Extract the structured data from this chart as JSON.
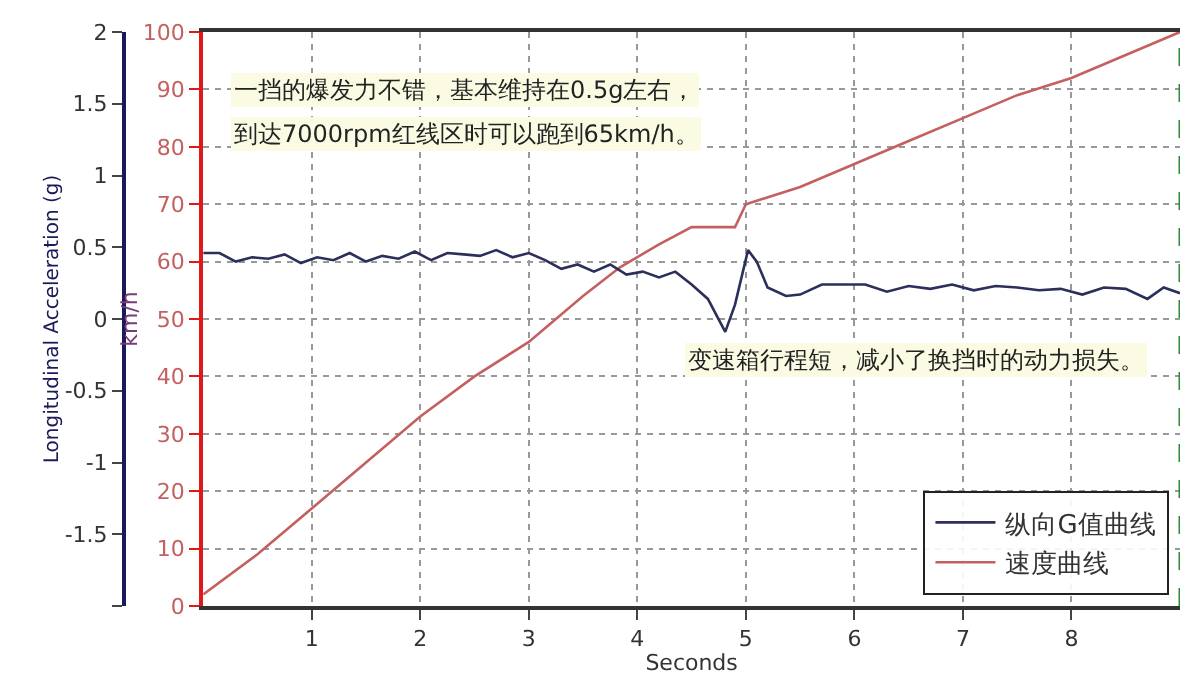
{
  "chart_data": {
    "type": "line",
    "xlabel": "Seconds",
    "ylabel": "km/h",
    "y2label": "Longitudinal Acceleration (g)",
    "xlim": [
      0,
      9
    ],
    "xticks": [
      1,
      2,
      3,
      4,
      5,
      6,
      7,
      8
    ],
    "ylim": [
      0,
      100
    ],
    "yticks": [
      0,
      10,
      20,
      30,
      40,
      50,
      60,
      70,
      80,
      90,
      100
    ],
    "y2lim": [
      -2,
      2
    ],
    "y2ticks": [
      {
        "value": -2,
        "label": null
      },
      -1.5,
      -1,
      -0.5,
      0,
      0.5,
      1,
      1.5,
      2
    ],
    "grid": true,
    "legend": "bottom right",
    "marker": "none",
    "line_style": "solid",
    "annotations": [
      "一挡的爆发力不错，基本维持在0.5g左右，",
      "到达7000rpm红线区时可以跑到65km/h。",
      "变速箱行程短，减小了换挡时的动力损失。"
    ],
    "ref_lines": [
      {
        "axis": "x",
        "value": 9,
        "color": "#2e8b3a",
        "line_style": "dashed"
      }
    ],
    "series": [
      {
        "name": "纵向G值曲线",
        "color": "#2b2f5a",
        "axis": "y2",
        "x": [
          0,
          0.15,
          0.3,
          0.45,
          0.6,
          0.75,
          0.9,
          1.05,
          1.2,
          1.35,
          1.5,
          1.65,
          1.8,
          1.95,
          2.1,
          2.25,
          2.4,
          2.55,
          2.7,
          2.85,
          3.0,
          3.15,
          3.3,
          3.45,
          3.6,
          3.75,
          3.9,
          4.05,
          4.2,
          4.35,
          4.5,
          4.65,
          4.81,
          4.9,
          5.02,
          5.1,
          5.2,
          5.37,
          5.5,
          5.7,
          5.9,
          6.1,
          6.3,
          6.5,
          6.7,
          6.9,
          7.1,
          7.3,
          7.5,
          7.7,
          7.9,
          8.1,
          8.3,
          8.5,
          8.7,
          8.85,
          9.0
        ],
        "values": [
          0.46,
          0.46,
          0.4,
          0.43,
          0.42,
          0.45,
          0.39,
          0.43,
          0.41,
          0.46,
          0.4,
          0.44,
          0.42,
          0.47,
          0.41,
          0.46,
          0.45,
          0.44,
          0.48,
          0.43,
          0.46,
          0.41,
          0.35,
          0.38,
          0.33,
          0.38,
          0.31,
          0.33,
          0.29,
          0.33,
          0.24,
          0.14,
          -0.09,
          0.1,
          0.48,
          0.4,
          0.22,
          0.16,
          0.17,
          0.24,
          0.24,
          0.24,
          0.19,
          0.23,
          0.21,
          0.24,
          0.2,
          0.23,
          0.22,
          0.2,
          0.21,
          0.17,
          0.22,
          0.21,
          0.14,
          0.22,
          0.18
        ]
      },
      {
        "name": "速度曲线",
        "color": "#c4605f",
        "axis": "y",
        "x": [
          0,
          0.5,
          1,
          1.5,
          2,
          2.5,
          3,
          3.5,
          3.84,
          4.2,
          4.5,
          4.9,
          5.0,
          5.5,
          6,
          6.5,
          7,
          7.5,
          8,
          8.5,
          9
        ],
        "values": [
          2,
          9,
          17,
          25,
          33,
          40,
          46,
          54,
          59,
          63,
          66,
          66,
          70,
          73,
          77,
          81,
          85,
          89,
          92,
          96,
          100
        ]
      }
    ]
  }
}
